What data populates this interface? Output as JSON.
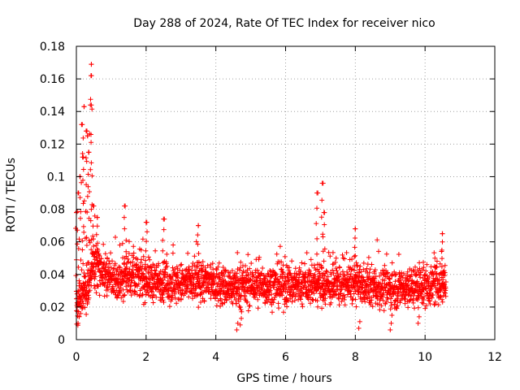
{
  "chart_data": {
    "type": "scatter",
    "title": "Day 288 of 2024, Rate Of TEC Index for receiver nico",
    "xlabel": "GPS time / hours",
    "ylabel": "ROTI / TECUs",
    "xlim": [
      0,
      12
    ],
    "ylim": [
      0,
      0.18
    ],
    "xticks": [
      0,
      2,
      4,
      6,
      8,
      10,
      12
    ],
    "xtick_labels": [
      "0",
      "2",
      "4",
      "6",
      "8",
      "10",
      "12"
    ],
    "yticks": [
      0,
      0.02,
      0.04,
      0.06,
      0.08,
      0.1,
      0.12,
      0.14,
      0.16,
      0.18
    ],
    "ytick_labels": [
      "0",
      "0.02",
      "0.04",
      "0.06",
      "0.08",
      "0.1",
      "0.12",
      "0.14",
      "0.16",
      "0.18"
    ],
    "grid": true,
    "marker": "+",
    "series": [
      {
        "name": "ROTI",
        "color": "#ff0000",
        "x_range": [
          0,
          10.6
        ],
        "baseline_profile": [
          [
            0,
            0.02
          ],
          [
            0.3,
            0.03
          ],
          [
            0.5,
            0.045
          ],
          [
            0.8,
            0.04
          ],
          [
            1.2,
            0.035
          ],
          [
            1.4,
            0.04
          ],
          [
            2.0,
            0.037
          ],
          [
            2.5,
            0.035
          ],
          [
            3.0,
            0.034
          ],
          [
            3.6,
            0.036
          ],
          [
            4.0,
            0.033
          ],
          [
            4.6,
            0.032
          ],
          [
            5.0,
            0.033
          ],
          [
            6.0,
            0.033
          ],
          [
            6.8,
            0.034
          ],
          [
            7.2,
            0.033
          ],
          [
            8.0,
            0.034
          ],
          [
            9.0,
            0.031
          ],
          [
            10.0,
            0.033
          ],
          [
            10.6,
            0.035
          ]
        ],
        "spread": 0.012,
        "peaks": [
          [
            0.0,
            0.078
          ],
          [
            0.05,
            0.09
          ],
          [
            0.1,
            0.1
          ],
          [
            0.15,
            0.132
          ],
          [
            0.2,
            0.112
          ],
          [
            0.22,
            0.143
          ],
          [
            0.28,
            0.128
          ],
          [
            0.32,
            0.125
          ],
          [
            0.35,
            0.115
          ],
          [
            0.4,
            0.144
          ],
          [
            0.42,
            0.162
          ],
          [
            0.43,
            0.169
          ],
          [
            0.5,
            0.082
          ],
          [
            0.6,
            0.075
          ],
          [
            1.4,
            0.082
          ],
          [
            2.0,
            0.072
          ],
          [
            2.5,
            0.074
          ],
          [
            3.5,
            0.07
          ],
          [
            6.9,
            0.09
          ],
          [
            7.05,
            0.096
          ],
          [
            7.1,
            0.078
          ],
          [
            8.0,
            0.068
          ],
          [
            10.5,
            0.065
          ]
        ],
        "lows": [
          [
            0.05,
            0.01
          ],
          [
            4.6,
            0.006
          ],
          [
            4.7,
            0.009
          ],
          [
            8.1,
            0.007
          ],
          [
            9.0,
            0.006
          ],
          [
            9.8,
            0.01
          ]
        ]
      }
    ]
  }
}
